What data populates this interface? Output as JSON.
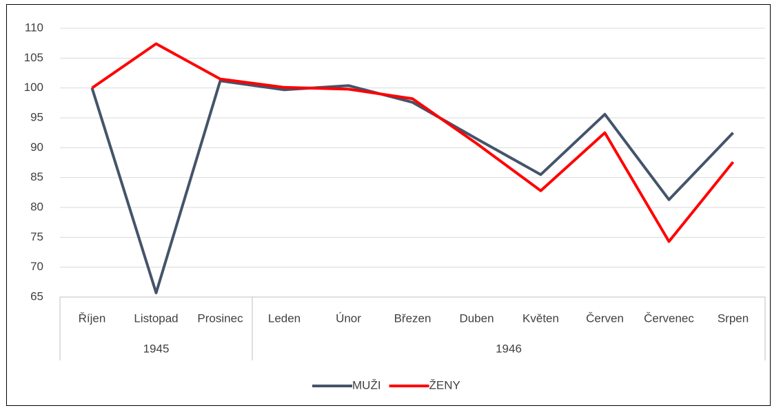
{
  "chart_data": {
    "type": "line",
    "categories": [
      "Říjen",
      "Listopad",
      "Prosinec",
      "Leden",
      "Únor",
      "Březen",
      "Duben",
      "Květen",
      "Červen",
      "Červenec",
      "Srpen"
    ],
    "groups": [
      {
        "label": "1945",
        "span": 3
      },
      {
        "label": "1946",
        "span": 8
      }
    ],
    "series": [
      {
        "name": "MUŽI",
        "color": "#44546a",
        "values": [
          100,
          65.7,
          101.2,
          99.7,
          100.4,
          97.6,
          91.5,
          85.5,
          95.6,
          81.3,
          92.5
        ]
      },
      {
        "name": "ŽENY",
        "color": "#ff0000",
        "values": [
          100,
          107.4,
          101.5,
          100.1,
          99.8,
          98.2,
          90.7,
          82.8,
          92.5,
          74.3,
          87.6
        ]
      }
    ],
    "ylim": [
      65,
      110
    ],
    "yticks": [
      65,
      70,
      75,
      80,
      85,
      90,
      95,
      100,
      105,
      110
    ],
    "grid": true,
    "legend": "bottom"
  }
}
